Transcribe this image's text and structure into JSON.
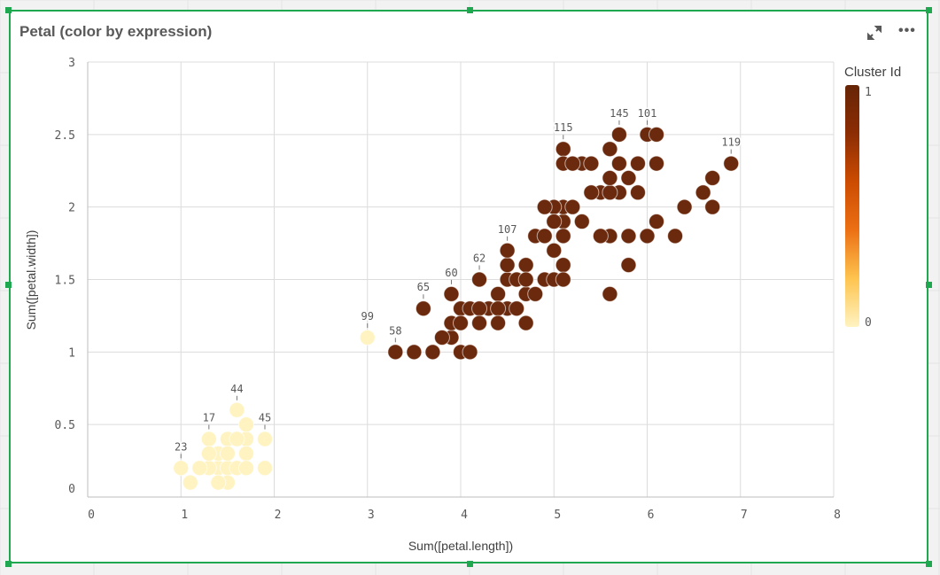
{
  "title": "Petal (color by expression)",
  "icons": {
    "expand": "expand-icon",
    "more": "more-options-icon"
  },
  "more_label": "•••",
  "colors": {
    "cluster_0": "#fff3c1",
    "cluster_1": "#6b2a0d",
    "frame": "#1fa84f",
    "gradient": [
      "#fff3c1",
      "#fec44f",
      "#ec7014",
      "#cc4c02",
      "#8c2d04",
      "#662506"
    ]
  },
  "chart_data": {
    "type": "scatter",
    "title": "Petal (color by expression)",
    "xlabel": "Sum([petal.length])",
    "ylabel": "Sum([petal.width])",
    "xlim": [
      0,
      8
    ],
    "ylim": [
      0,
      3
    ],
    "xticks": [
      "0",
      "1",
      "2",
      "3",
      "4",
      "5",
      "6",
      "7",
      "8"
    ],
    "yticks": [
      "0",
      "0.5",
      "1",
      "1.5",
      "2",
      "2.5",
      "3"
    ],
    "grid": true,
    "legend": {
      "title": "Cluster Id",
      "type": "gradient",
      "min_label": "0",
      "max_label": "1",
      "placement": "right"
    },
    "points": [
      [
        1.4,
        0.2,
        0
      ],
      [
        1.3,
        0.2,
        0
      ],
      [
        1.5,
        0.2,
        0
      ],
      [
        1.7,
        0.4,
        0
      ],
      [
        1.4,
        0.3,
        0
      ],
      [
        1.5,
        0.1,
        0
      ],
      [
        1.6,
        0.2,
        0
      ],
      [
        1.4,
        0.1,
        0
      ],
      [
        1.1,
        0.1,
        0
      ],
      [
        1.2,
        0.2,
        0
      ],
      [
        1.5,
        0.4,
        0
      ],
      [
        1.3,
        0.4,
        0,
        "17"
      ],
      [
        1.7,
        0.3,
        0
      ],
      [
        1.5,
        0.3,
        0
      ],
      [
        1.7,
        0.2,
        0
      ],
      [
        1.0,
        0.2,
        0,
        "23"
      ],
      [
        1.7,
        0.5,
        0
      ],
      [
        1.9,
        0.2,
        0
      ],
      [
        1.6,
        0.4,
        0
      ],
      [
        1.3,
        0.3,
        0
      ],
      [
        1.6,
        0.6,
        0,
        "44"
      ],
      [
        1.9,
        0.4,
        0,
        "45"
      ],
      [
        3.0,
        1.1,
        0,
        "99"
      ],
      [
        4.7,
        1.4,
        1
      ],
      [
        4.5,
        1.5,
        1
      ],
      [
        4.9,
        1.5,
        1
      ],
      [
        4.0,
        1.3,
        1
      ],
      [
        4.6,
        1.5,
        1
      ],
      [
        4.5,
        1.3,
        1
      ],
      [
        4.7,
        1.6,
        1
      ],
      [
        3.3,
        1.0,
        1,
        "58"
      ],
      [
        4.6,
        1.3,
        1
      ],
      [
        3.9,
        1.4,
        1,
        "60"
      ],
      [
        3.5,
        1.0,
        1
      ],
      [
        4.2,
        1.5,
        1,
        "62"
      ],
      [
        4.0,
        1.0,
        1
      ],
      [
        3.6,
        1.3,
        1,
        "65"
      ],
      [
        4.4,
        1.4,
        1
      ],
      [
        4.1,
        1.0,
        1
      ],
      [
        3.9,
        1.1,
        1
      ],
      [
        4.8,
        1.8,
        1
      ],
      [
        4.7,
        1.2,
        1
      ],
      [
        4.3,
        1.3,
        1
      ],
      [
        4.8,
        1.4,
        1
      ],
      [
        5.0,
        1.7,
        1
      ],
      [
        3.8,
        1.1,
        1
      ],
      [
        3.7,
        1.0,
        1
      ],
      [
        3.9,
        1.2,
        1
      ],
      [
        5.1,
        1.6,
        1
      ],
      [
        4.5,
        1.6,
        1
      ],
      [
        4.7,
        1.5,
        1
      ],
      [
        4.4,
        1.3,
        1
      ],
      [
        4.1,
        1.3,
        1
      ],
      [
        4.4,
        1.2,
        1
      ],
      [
        4.0,
        1.2,
        1
      ],
      [
        4.2,
        1.3,
        1
      ],
      [
        4.2,
        1.2,
        1
      ],
      [
        6.0,
        2.5,
        1,
        "101"
      ],
      [
        5.1,
        1.9,
        1
      ],
      [
        5.9,
        2.1,
        1
      ],
      [
        5.6,
        1.8,
        1
      ],
      [
        5.8,
        2.2,
        1
      ],
      [
        6.6,
        2.1,
        1
      ],
      [
        4.5,
        1.7,
        1,
        "107"
      ],
      [
        6.3,
        1.8,
        1
      ],
      [
        5.8,
        1.8,
        1
      ],
      [
        6.1,
        2.5,
        1
      ],
      [
        5.1,
        2.0,
        1
      ],
      [
        5.3,
        1.9,
        1
      ],
      [
        5.5,
        2.1,
        1
      ],
      [
        5.0,
        2.0,
        1
      ],
      [
        5.1,
        2.4,
        1,
        "115"
      ],
      [
        5.3,
        2.3,
        1
      ],
      [
        5.5,
        1.8,
        1
      ],
      [
        6.7,
        2.2,
        1
      ],
      [
        6.9,
        2.3,
        1,
        "119"
      ],
      [
        5.0,
        1.5,
        1
      ],
      [
        5.7,
        2.3,
        1
      ],
      [
        4.9,
        2.0,
        1
      ],
      [
        6.7,
        2.0,
        1
      ],
      [
        4.9,
        1.8,
        1
      ],
      [
        5.7,
        2.1,
        1
      ],
      [
        6.0,
        1.8,
        1
      ],
      [
        5.6,
        2.1,
        1
      ],
      [
        5.8,
        1.6,
        1
      ],
      [
        6.1,
        1.9,
        1
      ],
      [
        6.4,
        2.0,
        1
      ],
      [
        5.6,
        2.2,
        1
      ],
      [
        5.1,
        1.5,
        1
      ],
      [
        5.6,
        1.4,
        1
      ],
      [
        6.1,
        2.3,
        1
      ],
      [
        5.6,
        2.4,
        1
      ],
      [
        5.4,
        2.1,
        1
      ],
      [
        5.1,
        2.3,
        1
      ],
      [
        5.9,
        2.3,
        1
      ],
      [
        5.7,
        2.5,
        1,
        "145"
      ],
      [
        5.2,
        2.3,
        1
      ],
      [
        5.0,
        1.9,
        1
      ],
      [
        5.2,
        2.0,
        1
      ],
      [
        5.4,
        2.3,
        1
      ],
      [
        5.1,
        1.8,
        1
      ]
    ]
  }
}
